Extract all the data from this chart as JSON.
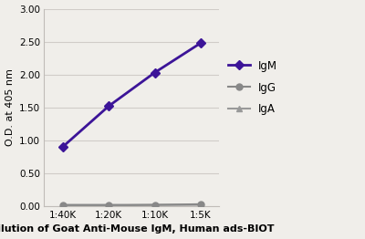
{
  "x_labels": [
    "1:40K",
    "1:20K",
    "1:10K",
    "1:5K"
  ],
  "x_positions": [
    1,
    2,
    3,
    4
  ],
  "IgM_values": [
    0.9,
    1.52,
    2.03,
    2.48
  ],
  "IgG_values": [
    0.02,
    0.02,
    0.02,
    0.03
  ],
  "IgA_values": [
    0.01,
    0.01,
    0.02,
    0.02
  ],
  "IgM_color": "#3c1498",
  "IgG_color": "#888888",
  "IgA_color": "#999999",
  "ylabel": "O.D. at 405 nm",
  "xlabel": "Dilution of Goat Anti-Mouse IgM, Human ads-BIOT",
  "ylim": [
    0.0,
    3.0
  ],
  "yticks": [
    0.0,
    0.5,
    1.0,
    1.5,
    2.0,
    2.5,
    3.0
  ],
  "background_color": "#f0eeea",
  "plot_bg_color": "#f0eeea",
  "grid_color": "#d0ccc8",
  "spine_color": "#c0bcb8"
}
